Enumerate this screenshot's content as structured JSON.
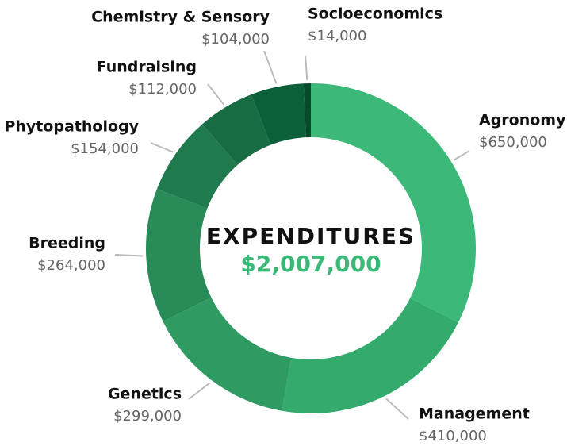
{
  "chart_data": {
    "type": "donut",
    "title": "EXPENDITURES",
    "center_label": "$2,007,000",
    "categories": [
      "Agronomy",
      "Management",
      "Genetics",
      "Breeding",
      "Phytopathology",
      "Fundraising",
      "Chemistry & Sensory",
      "Socioeconomics"
    ],
    "values": [
      650000,
      410000,
      299000,
      264000,
      154000,
      112000,
      104000,
      14000
    ],
    "value_labels": [
      "$650,000",
      "$410,000",
      "$299,000",
      "$264,000",
      "$154,000",
      "$112,000",
      "$104,000",
      "$14,000"
    ],
    "colors": [
      "#3cb878",
      "#35aa6d",
      "#2f9b63",
      "#288b58",
      "#1f7b4d",
      "#176c43",
      "#0b5f39",
      "#07492b"
    ]
  }
}
